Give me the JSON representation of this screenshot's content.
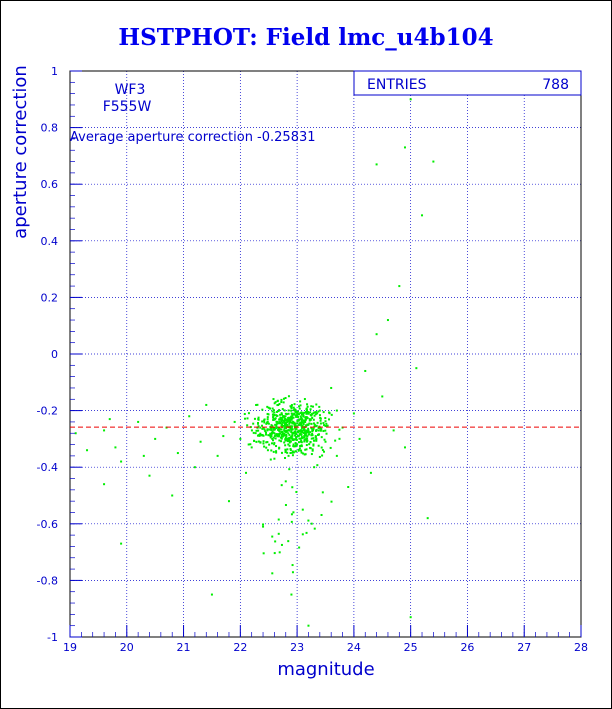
{
  "page": {
    "title": "HSTPHOT: Field lmc_u4b104"
  },
  "stats_box": {
    "entries_label": "ENTRIES",
    "entries_value": "788"
  },
  "info": {
    "camera": "WF3",
    "filter": "F555W",
    "average_text": "Average aperture correction -0.25831"
  },
  "chart_data": {
    "type": "scatter",
    "title": "HSTPHOT: Field lmc_u4b104",
    "xlabel": "magnitude",
    "ylabel": "aperture correction",
    "xlim": [
      19,
      28
    ],
    "ylim": [
      -1,
      1
    ],
    "xticks": [
      19,
      20,
      21,
      22,
      23,
      24,
      25,
      26,
      27,
      28
    ],
    "yticks": [
      -1,
      -0.8,
      -0.6,
      -0.4,
      -0.2,
      0,
      0.2,
      0.4,
      0.6,
      0.8,
      1
    ],
    "grid": true,
    "entries": 788,
    "average_aperture_correction": -0.25831,
    "colors": {
      "points": "#00ee00",
      "grid": "#0000cc",
      "mean_line": "#ee0000"
    },
    "points": [
      [
        19.1,
        -0.28
      ],
      [
        19.3,
        -0.34
      ],
      [
        19.6,
        -0.27
      ],
      [
        19.7,
        -0.23
      ],
      [
        19.8,
        -0.33
      ],
      [
        19.9,
        -0.67
      ],
      [
        19.6,
        -0.46
      ],
      [
        19.9,
        -0.38
      ],
      [
        20.2,
        -0.24
      ],
      [
        20.3,
        -0.36
      ],
      [
        20.4,
        -0.43
      ],
      [
        20.5,
        -0.3
      ],
      [
        20.7,
        -0.26
      ],
      [
        20.8,
        -0.5
      ],
      [
        20.9,
        -0.35
      ],
      [
        21.1,
        -0.22
      ],
      [
        21.2,
        -0.4
      ],
      [
        21.3,
        -0.31
      ],
      [
        21.4,
        -0.18
      ],
      [
        21.6,
        -0.36
      ],
      [
        21.7,
        -0.29
      ],
      [
        21.8,
        -0.52
      ],
      [
        21.9,
        -0.24
      ],
      [
        21.5,
        -0.85
      ],
      [
        22.0,
        -0.3
      ],
      [
        22.1,
        -0.42
      ],
      [
        22.2,
        -0.33
      ],
      [
        22.3,
        -0.26
      ],
      [
        22.4,
        -0.61
      ],
      [
        22.5,
        -0.19
      ],
      [
        22.6,
        -0.37
      ],
      [
        22.7,
        -0.28
      ],
      [
        22.8,
        -0.45
      ],
      [
        22.9,
        -0.23
      ],
      [
        23.0,
        -0.32
      ],
      [
        23.1,
        -0.55
      ],
      [
        23.2,
        -0.27
      ],
      [
        23.3,
        -0.4
      ],
      [
        23.4,
        -0.2
      ],
      [
        23.5,
        -0.31
      ],
      [
        23.6,
        -0.12
      ],
      [
        23.7,
        -0.36
      ],
      [
        23.8,
        -0.26
      ],
      [
        23.9,
        -0.47
      ],
      [
        24.0,
        -0.21
      ],
      [
        24.1,
        -0.3
      ],
      [
        24.2,
        -0.06
      ],
      [
        24.3,
        -0.42
      ],
      [
        24.4,
        0.07
      ],
      [
        24.5,
        -0.15
      ],
      [
        24.6,
        0.12
      ],
      [
        24.7,
        -0.27
      ],
      [
        24.8,
        0.24
      ],
      [
        24.9,
        -0.33
      ],
      [
        25.0,
        0.9
      ],
      [
        25.1,
        -0.05
      ],
      [
        25.2,
        0.49
      ],
      [
        25.3,
        -0.58
      ],
      [
        25.4,
        0.68
      ],
      [
        25.0,
        -0.93
      ],
      [
        24.4,
        0.67
      ],
      [
        24.9,
        0.73
      ],
      [
        23.2,
        -0.96
      ],
      [
        22.9,
        -0.85
      ]
    ]
  }
}
